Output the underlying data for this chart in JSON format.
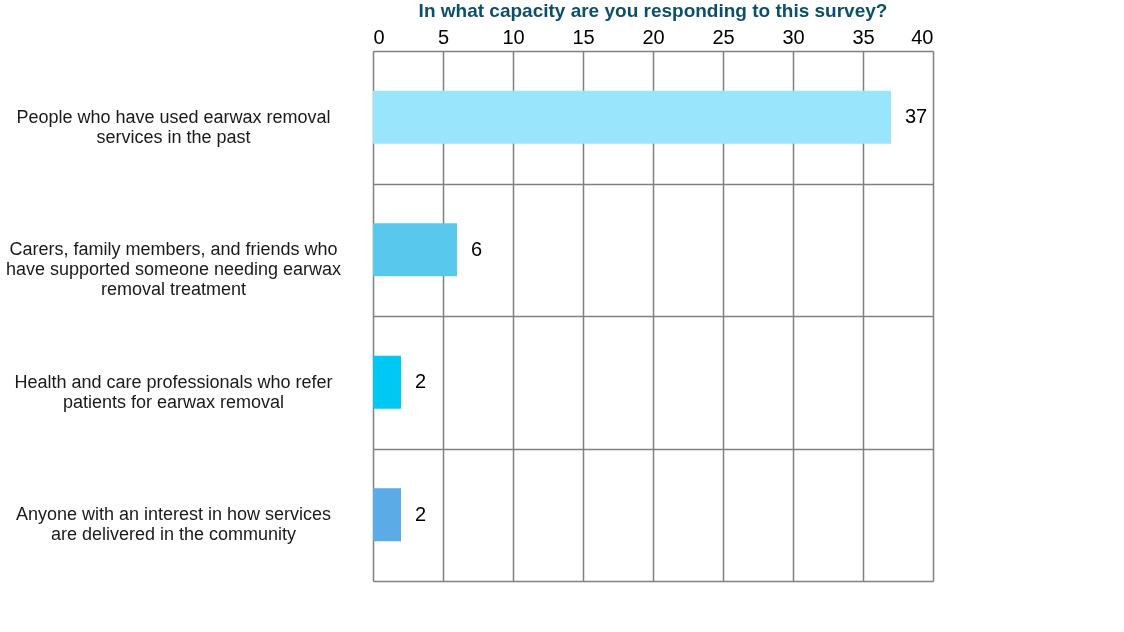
{
  "chart_data": {
    "type": "bar",
    "orientation": "horizontal",
    "title": "In what capacity are you responding to this survey?",
    "categories": [
      "People who have used earwax removal services in the past",
      "Carers, family members, and friends who have supported someone needing earwax removal treatment",
      "Health and care professionals who refer patients for earwax removal",
      "Anyone with an interest in how services are delivered in the community"
    ],
    "values": [
      37,
      6,
      2,
      2
    ],
    "colors": [
      "#99e5fb",
      "#58c8ed",
      "#00c8f5",
      "#5aabe6"
    ],
    "xlim": [
      0,
      40
    ],
    "xticks": [
      0,
      5,
      10,
      15,
      20,
      25,
      30,
      35,
      40
    ],
    "grid": true,
    "data_labels": true
  }
}
